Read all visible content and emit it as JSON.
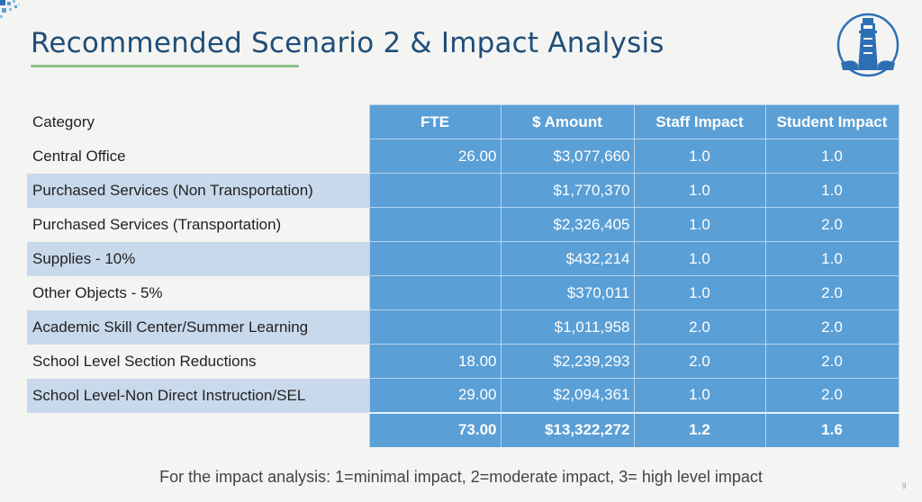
{
  "slide": {
    "title": "Recommended Scenario 2 & Impact Analysis",
    "page_number": "9",
    "footnote": "For the impact analysis: 1=minimal impact, 2=moderate impact, 3= high level impact"
  },
  "colors": {
    "title": "#1f4e79",
    "accent_line": "#8cc08a",
    "cell_blue": "#5a9fd6",
    "row_shade": "#c9d9ec"
  },
  "table": {
    "headers": {
      "category": "Category",
      "fte": "FTE",
      "amount": "$ Amount",
      "staff_impact": "Staff Impact",
      "student_impact": "Student Impact"
    },
    "rows": [
      {
        "category": "Central Office",
        "fte": "26.00",
        "amount": "$3,077,660",
        "staff": "1.0",
        "student": "1.0"
      },
      {
        "category": "Purchased Services (Non Transportation)",
        "fte": "",
        "amount": "$1,770,370",
        "staff": "1.0",
        "student": "1.0"
      },
      {
        "category": "Purchased Services (Transportation)",
        "fte": "",
        "amount": "$2,326,405",
        "staff": "1.0",
        "student": "2.0"
      },
      {
        "category": "Supplies - 10%",
        "fte": "",
        "amount": "$432,214",
        "staff": "1.0",
        "student": "1.0"
      },
      {
        "category": "Other Objects - 5%",
        "fte": "",
        "amount": "$370,011",
        "staff": "1.0",
        "student": "2.0"
      },
      {
        "category": "Academic Skill Center/Summer Learning",
        "fte": "",
        "amount": "$1,011,958",
        "staff": "2.0",
        "student": "2.0"
      },
      {
        "category": "School Level Section Reductions",
        "fte": "18.00",
        "amount": "$2,239,293",
        "staff": "2.0",
        "student": "2.0"
      },
      {
        "category": "School Level-Non Direct Instruction/SEL",
        "fte": "29.00",
        "amount": "$2,094,361",
        "staff": "1.0",
        "student": "2.0"
      }
    ],
    "total": {
      "fte": "73.00",
      "amount": "$13,322,272",
      "staff": "1.2",
      "student": "1.6"
    }
  }
}
